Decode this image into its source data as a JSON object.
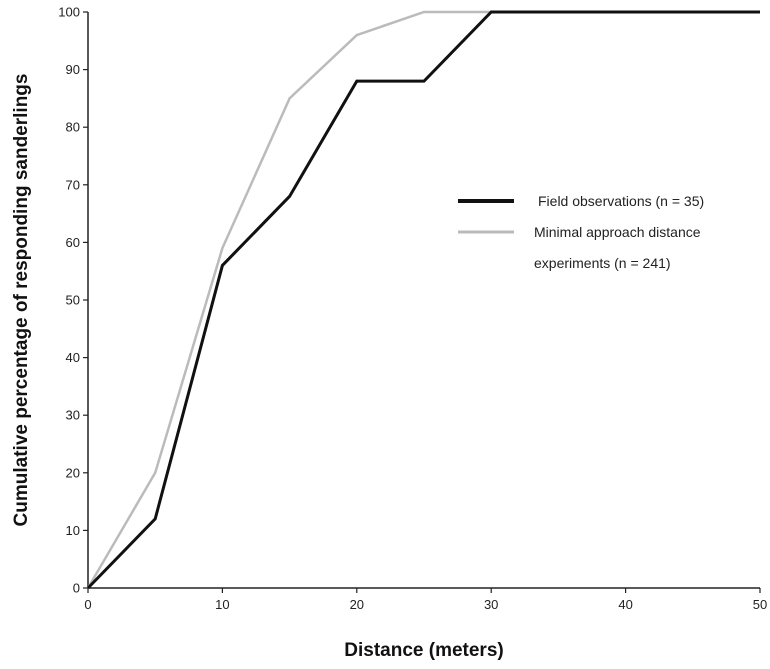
{
  "chart_data": {
    "type": "line",
    "title": "",
    "xlabel": "Distance (meters)",
    "ylabel": "Cumulative percentage of responding sanderlings",
    "xlim": [
      0,
      50
    ],
    "ylim": [
      0,
      100
    ],
    "xticks": [
      0,
      10,
      20,
      30,
      40,
      50
    ],
    "yticks": [
      0,
      10,
      20,
      30,
      40,
      50,
      60,
      70,
      80,
      90,
      100
    ],
    "grid": false,
    "legend_position": "right-middle",
    "series": [
      {
        "name": "Field observations (n = 35)",
        "color": "#111111",
        "style": "solid-thick",
        "x": [
          0,
          5,
          10,
          15,
          20,
          25,
          30,
          50
        ],
        "y": [
          0,
          12,
          56,
          68,
          88,
          88,
          100,
          100
        ]
      },
      {
        "name": "Minimal approach distance experiments (n = 241)",
        "legend_lines": [
          "Minimal approach distance",
          "experiments (n = 241)"
        ],
        "color": "#bbbbbb",
        "style": "solid-light",
        "x": [
          0,
          5,
          10,
          15,
          20,
          25,
          30,
          50
        ],
        "y": [
          0,
          20,
          59,
          85,
          96,
          100,
          100,
          100
        ]
      }
    ]
  }
}
